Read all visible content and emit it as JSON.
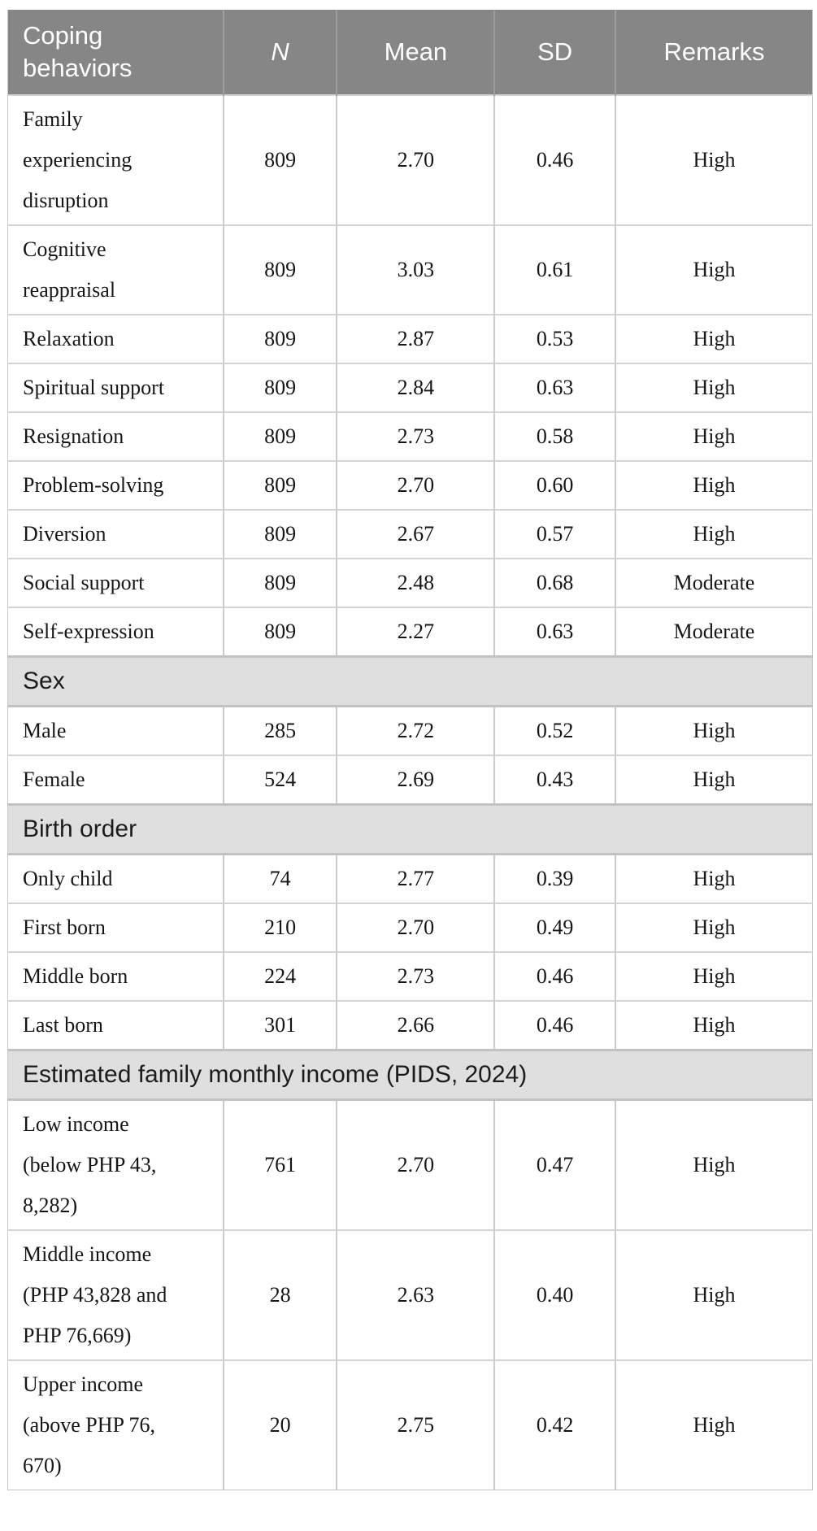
{
  "table": {
    "columns": [
      {
        "label": "Coping behaviors",
        "key": "label",
        "italic": false
      },
      {
        "label": "N",
        "key": "n",
        "italic": true
      },
      {
        "label": "Mean",
        "key": "mean",
        "italic": false
      },
      {
        "label": "SD",
        "key": "sd",
        "italic": false
      },
      {
        "label": "Remarks",
        "key": "remarks",
        "italic": false
      }
    ],
    "sections": [
      {
        "header": null,
        "rows": [
          {
            "label": "Family\nexperiencing\ndisruption",
            "n": "809",
            "mean": "2.70",
            "sd": "0.46",
            "remarks": "High"
          },
          {
            "label": "Cognitive\nreappraisal",
            "n": "809",
            "mean": "3.03",
            "sd": "0.61",
            "remarks": "High"
          },
          {
            "label": "Relaxation",
            "n": "809",
            "mean": "2.87",
            "sd": "0.53",
            "remarks": "High"
          },
          {
            "label": "Spiritual support",
            "n": "809",
            "mean": "2.84",
            "sd": "0.63",
            "remarks": "High"
          },
          {
            "label": "Resignation",
            "n": "809",
            "mean": "2.73",
            "sd": "0.58",
            "remarks": "High"
          },
          {
            "label": "Problem-solving",
            "n": "809",
            "mean": "2.70",
            "sd": "0.60",
            "remarks": "High"
          },
          {
            "label": "Diversion",
            "n": "809",
            "mean": "2.67",
            "sd": "0.57",
            "remarks": "High"
          },
          {
            "label": "Social support",
            "n": "809",
            "mean": "2.48",
            "sd": "0.68",
            "remarks": "Moderate"
          },
          {
            "label": "Self-expression",
            "n": "809",
            "mean": "2.27",
            "sd": "0.63",
            "remarks": "Moderate"
          }
        ]
      },
      {
        "header": "Sex",
        "rows": [
          {
            "label": "Male",
            "n": "285",
            "mean": "2.72",
            "sd": "0.52",
            "remarks": "High"
          },
          {
            "label": "Female",
            "n": "524",
            "mean": "2.69",
            "sd": "0.43",
            "remarks": "High"
          }
        ]
      },
      {
        "header": "Birth order",
        "rows": [
          {
            "label": "Only child",
            "n": "74",
            "mean": "2.77",
            "sd": "0.39",
            "remarks": "High"
          },
          {
            "label": "First born",
            "n": "210",
            "mean": "2.70",
            "sd": "0.49",
            "remarks": "High"
          },
          {
            "label": "Middle born",
            "n": "224",
            "mean": "2.73",
            "sd": "0.46",
            "remarks": "High"
          },
          {
            "label": "Last born",
            "n": "301",
            "mean": "2.66",
            "sd": "0.46",
            "remarks": "High"
          }
        ]
      },
      {
        "header": "Estimated family monthly income (PIDS, 2024)",
        "rows": [
          {
            "label": "Low income\n(below PHP 43,\n8,282)",
            "n": "761",
            "mean": "2.70",
            "sd": "0.47",
            "remarks": "High"
          },
          {
            "label": "Middle income\n(PHP 43,828 and\nPHP 76,669)",
            "n": "28",
            "mean": "2.63",
            "sd": "0.40",
            "remarks": "High"
          },
          {
            "label": "Upper income\n(above PHP 76,\n670)",
            "n": "20",
            "mean": "2.75",
            "sd": "0.42",
            "remarks": "High"
          }
        ]
      }
    ]
  },
  "colors": {
    "header_bg": "#868686",
    "header_text": "#ffffff",
    "section_bg": "#dfdfdf",
    "row_border": "#d4d4d4",
    "column_border": "#cbcbcb",
    "body_text": "#161616"
  },
  "layout": {
    "column_widths_pct": [
      26.8,
      14.1,
      19.6,
      15.0,
      24.5
    ]
  }
}
